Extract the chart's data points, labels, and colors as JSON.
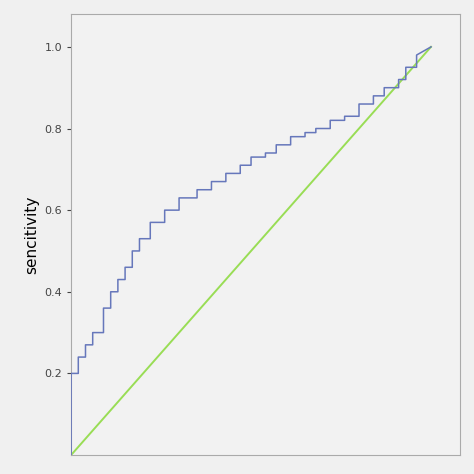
{
  "ylabel": "sencitivity",
  "xlabel": "",
  "background_color": "#f0f0f0",
  "plot_bg_color": "#f2f2f2",
  "roc_color": "#6677bb",
  "diag_color": "#99dd55",
  "roc_linewidth": 1.1,
  "diag_linewidth": 1.4,
  "ylim": [
    0.0,
    1.08
  ],
  "xlim": [
    0.0,
    1.08
  ],
  "yticks": [
    0.2,
    0.4,
    0.6,
    0.8,
    1.0
  ],
  "roc_x": [
    0.0,
    0.0,
    0.02,
    0.02,
    0.04,
    0.04,
    0.06,
    0.06,
    0.09,
    0.09,
    0.11,
    0.11,
    0.13,
    0.13,
    0.15,
    0.15,
    0.17,
    0.17,
    0.19,
    0.19,
    0.22,
    0.22,
    0.26,
    0.26,
    0.3,
    0.3,
    0.35,
    0.35,
    0.39,
    0.39,
    0.43,
    0.43,
    0.47,
    0.47,
    0.5,
    0.5,
    0.54,
    0.54,
    0.57,
    0.57,
    0.61,
    0.61,
    0.65,
    0.65,
    0.68,
    0.68,
    0.72,
    0.72,
    0.76,
    0.76,
    0.8,
    0.8,
    0.84,
    0.84,
    0.87,
    0.87,
    0.91,
    0.91,
    0.93,
    0.93,
    0.96,
    0.96,
    1.0
  ],
  "roc_y": [
    0.0,
    0.2,
    0.2,
    0.24,
    0.24,
    0.27,
    0.27,
    0.3,
    0.3,
    0.36,
    0.36,
    0.4,
    0.4,
    0.43,
    0.43,
    0.46,
    0.46,
    0.5,
    0.5,
    0.53,
    0.53,
    0.57,
    0.57,
    0.6,
    0.6,
    0.63,
    0.63,
    0.65,
    0.65,
    0.67,
    0.67,
    0.69,
    0.69,
    0.71,
    0.71,
    0.73,
    0.73,
    0.74,
    0.74,
    0.76,
    0.76,
    0.78,
    0.78,
    0.79,
    0.79,
    0.8,
    0.8,
    0.82,
    0.82,
    0.83,
    0.83,
    0.86,
    0.86,
    0.88,
    0.88,
    0.9,
    0.9,
    0.92,
    0.92,
    0.95,
    0.95,
    0.98,
    1.0
  ]
}
